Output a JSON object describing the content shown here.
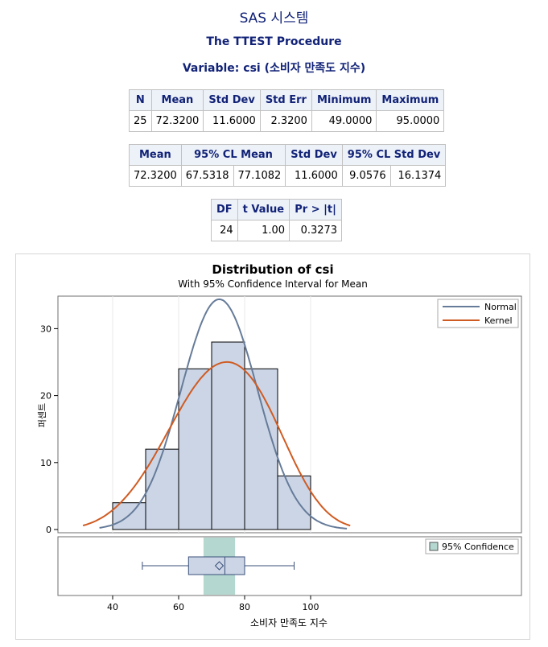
{
  "header": {
    "system_title": "SAS 시스템",
    "procedure": "The TTEST Procedure",
    "variable": "Variable: csi (소비자 만족도 지수)"
  },
  "stats_table": {
    "columns": [
      "N",
      "Mean",
      "Std Dev",
      "Std Err",
      "Minimum",
      "Maximum"
    ],
    "row": [
      "25",
      "72.3200",
      "11.6000",
      "2.3200",
      "49.0000",
      "95.0000"
    ]
  },
  "ci_table": {
    "columns": [
      "Mean",
      "95% CL Mean",
      "Std Dev",
      "95% CL Std Dev"
    ],
    "row": [
      "72.3200",
      "67.5318",
      "77.1082",
      "11.6000",
      "9.0576",
      "16.1374"
    ]
  },
  "ttest_table": {
    "columns": [
      "DF",
      "t Value",
      "Pr > |t|"
    ],
    "row": [
      "24",
      "1.00",
      "0.3273"
    ]
  },
  "chart_data": {
    "type": "bar",
    "title": "Distribution of csi",
    "subtitle": "With 95% Confidence Interval for Mean",
    "xlabel": "소비자 만족도 지수",
    "ylabel": "퍼센트",
    "xlim": [
      30,
      113
    ],
    "ylim": [
      0,
      35
    ],
    "x_ticks": [
      40,
      60,
      80,
      100
    ],
    "y_ticks": [
      0,
      10,
      20,
      30
    ],
    "bin_edges": [
      40,
      50,
      60,
      70,
      80,
      90,
      100
    ],
    "values": [
      4,
      12,
      24,
      28,
      24,
      8
    ],
    "bar_color": "#cbd5e6",
    "series": [
      {
        "name": "Normal",
        "type": "normal_density",
        "mean": 72.32,
        "std": 11.6,
        "color": "#667b99"
      },
      {
        "name": "Kernel",
        "type": "kernel_density",
        "color": "#d05b22"
      }
    ],
    "legend_placement": "top-right",
    "boxplot": {
      "min": 49,
      "q1": 63,
      "median": 74,
      "q3": 80,
      "max": 95,
      "mean": 72.32,
      "ci_lower": 67.5318,
      "ci_upper": 77.1082,
      "ci_color": "#b4d8d0",
      "ci_legend": "95% Confidence"
    },
    "grid": false
  }
}
